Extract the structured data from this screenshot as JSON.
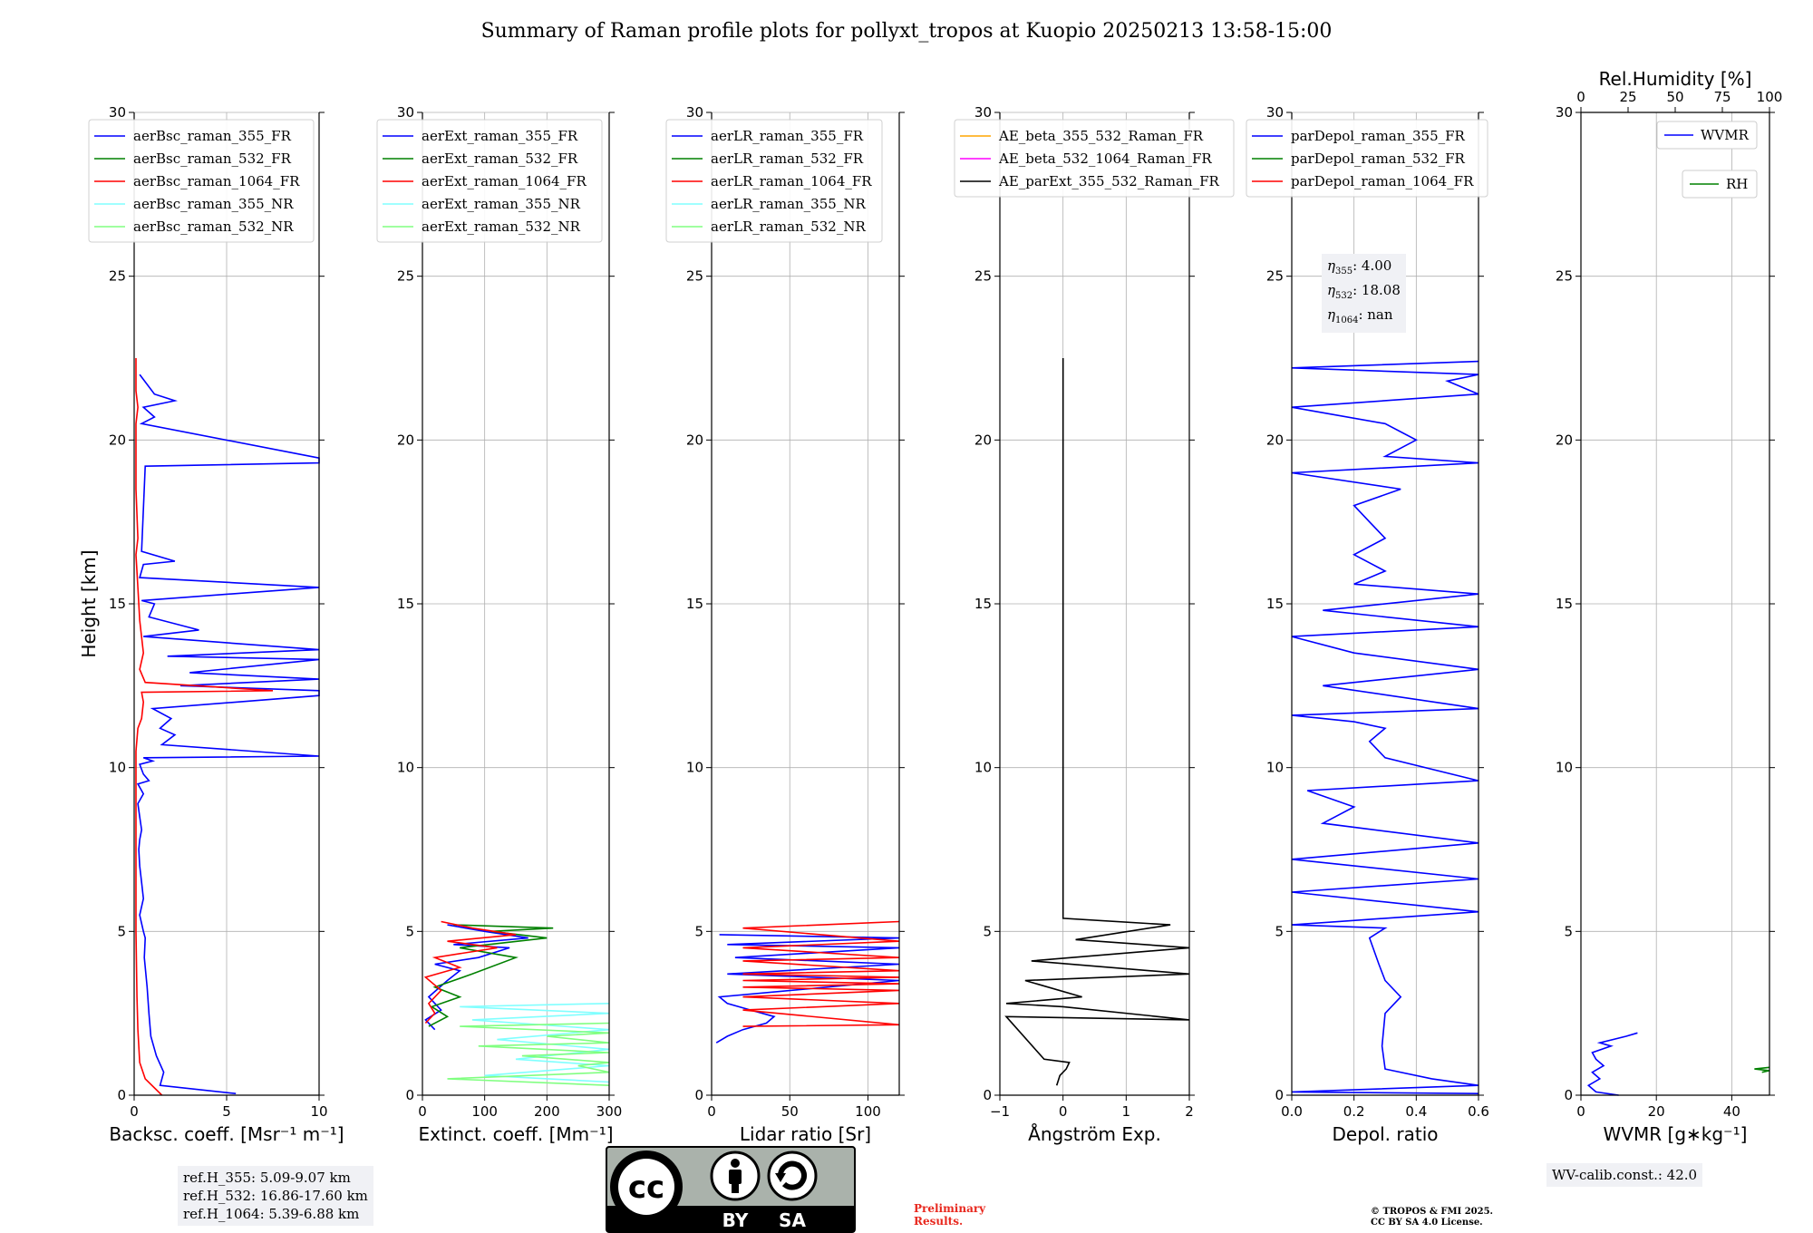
{
  "title": "Summary of Raman profile plots for pollyxt_tropos at Kuopio 20250213 13:58-15:00",
  "ylabel": "Height [km]",
  "ref_box": [
    "ref.H_355: 5.09-9.07 km",
    "ref.H_532: 16.86-17.60 km",
    "ref.H_1064: 5.39-6.88 km"
  ],
  "eta_box": [
    {
      "sym": "η",
      "sub": "355",
      "value": ": 4.00"
    },
    {
      "sym": "η",
      "sub": "532",
      "value": ": 18.08"
    },
    {
      "sym": "η",
      "sub": "1064",
      "value": ": nan"
    }
  ],
  "wv_calib": "WV-calib.const.: 42.0",
  "preliminary": [
    "Preliminary",
    "Results."
  ],
  "copyright": [
    "© TROPOS & FMI 2025.",
    "CC BY SA 4.0 License."
  ],
  "cc_logo": {
    "cc": "cc",
    "by": "BY",
    "sa": "SA"
  },
  "colors": {
    "blue": "#0000ff",
    "green": "#008000",
    "red": "#ff0000",
    "cyan": "#80ffff",
    "lightgreen": "#80ff80",
    "orange": "#ffa500",
    "magenta": "#ff00ff",
    "black": "#000000"
  },
  "chart_data": [
    {
      "type": "line",
      "xlabel": "Backsc. coeff. [Msr⁻¹ m⁻¹]",
      "xlim": [
        0,
        10
      ],
      "xticks": [
        0,
        5,
        10
      ],
      "ylim": [
        0,
        30
      ],
      "yticks": [
        0,
        5,
        10,
        15,
        20,
        25,
        30
      ],
      "legend": [
        "aerBsc_raman_355_FR",
        "aerBsc_raman_532_FR",
        "aerBsc_raman_1064_FR",
        "aerBsc_raman_355_NR",
        "aerBsc_raman_532_NR"
      ],
      "legend_colors": [
        "blue",
        "green",
        "red",
        "cyan",
        "lightgreen"
      ],
      "legend_position": "top-left",
      "series": [
        {
          "name": "aerBsc_raman_355_FR",
          "color": "blue",
          "x": [
            5.5,
            1.4,
            1.6,
            1.2,
            0.9,
            0.8,
            0.7,
            0.55,
            0.6,
            0.5,
            0.3,
            0.5,
            0.4,
            0.3,
            0.25,
            0.3,
            0.4,
            0.3,
            0.2,
            0.5,
            0.2,
            0.8,
            0.5,
            0.3,
            1.0,
            0.5,
            10,
            1.5,
            2.2,
            1.4,
            2.0,
            1.0,
            10,
            10,
            2.5,
            10,
            3.0,
            10,
            1.8,
            10,
            0.5,
            3.5,
            0.8,
            1.1,
            0.4,
            10,
            0.3,
            0.5,
            2.2,
            0.4,
            0.6,
            10,
            10,
            0.4,
            1.1,
            0.5,
            2.2,
            1.1,
            0.3
          ],
          "y": [
            0.05,
            0.3,
            0.7,
            1.2,
            1.8,
            2.5,
            3.3,
            4.2,
            4.8,
            5.0,
            5.5,
            6.0,
            6.5,
            7.0,
            7.5,
            7.8,
            8.1,
            8.5,
            8.9,
            9.2,
            9.5,
            9.6,
            9.8,
            10.1,
            10.2,
            10.3,
            10.35,
            10.7,
            11.0,
            11.2,
            11.5,
            11.8,
            12.2,
            12.35,
            12.5,
            12.7,
            12.9,
            13.3,
            13.4,
            13.6,
            14.0,
            14.2,
            14.6,
            15.0,
            15.1,
            15.5,
            15.8,
            16.2,
            16.3,
            16.6,
            19.2,
            19.3,
            19.45,
            20.5,
            20.7,
            21.0,
            21.2,
            21.4,
            22.0
          ]
        },
        {
          "name": "aerBsc_raman_1064_FR",
          "color": "red",
          "x": [
            1.5,
            0.6,
            0.3,
            0.2,
            0.15,
            0.1,
            0.1,
            0.1,
            0.1,
            0.2,
            0.4,
            0.5,
            0.4,
            7.5,
            0.6,
            0.3,
            0.5,
            0.3,
            0.2,
            0.1,
            0.2,
            0.1,
            0.1,
            0.1,
            0.2,
            0.1,
            0.1
          ],
          "y": [
            0.0,
            0.5,
            1.0,
            2.0,
            3.0,
            5.0,
            7.0,
            9.0,
            10.5,
            11.2,
            11.5,
            12.0,
            12.3,
            12.35,
            12.6,
            13.0,
            13.5,
            14.5,
            15.5,
            16.5,
            17.0,
            18.5,
            19.5,
            20.5,
            21.0,
            21.5,
            22.5
          ]
        }
      ]
    },
    {
      "type": "line",
      "xlabel": "Extinct. coeff. [Mm⁻¹]",
      "xlim": [
        0,
        300
      ],
      "xticks": [
        0,
        100,
        200,
        300
      ],
      "ylim": [
        0,
        30
      ],
      "yticks": [
        0,
        5,
        10,
        15,
        20,
        25,
        30
      ],
      "legend": [
        "aerExt_raman_355_FR",
        "aerExt_raman_532_FR",
        "aerExt_raman_1064_FR",
        "aerExt_raman_355_NR",
        "aerExt_raman_532_NR"
      ],
      "legend_colors": [
        "blue",
        "green",
        "red",
        "cyan",
        "lightgreen"
      ],
      "legend_position": "top-left",
      "series": [
        {
          "name": "aerExt_raman_355_NR",
          "color": "cyan",
          "x": [
            300,
            100,
            300,
            150,
            300,
            120,
            300,
            80,
            300,
            60,
            300
          ],
          "y": [
            0.4,
            0.6,
            0.9,
            1.1,
            1.4,
            1.7,
            2.0,
            2.3,
            2.5,
            2.7,
            2.8
          ]
        },
        {
          "name": "aerExt_raman_532_NR",
          "color": "lightgreen",
          "x": [
            300,
            40,
            300,
            250,
            300,
            160,
            300,
            90,
            300,
            200,
            300,
            60,
            300
          ],
          "y": [
            0.3,
            0.5,
            0.7,
            0.9,
            1.0,
            1.2,
            1.3,
            1.5,
            1.6,
            1.8,
            1.9,
            2.1,
            2.2
          ]
        },
        {
          "name": "aerExt_raman_355_FR",
          "color": "blue",
          "x": [
            20,
            5,
            30,
            10,
            40,
            60,
            20,
            90,
            140,
            50,
            170,
            100,
            40
          ],
          "y": [
            2.0,
            2.3,
            2.6,
            3.0,
            3.5,
            3.8,
            4.0,
            4.2,
            4.5,
            4.6,
            4.8,
            5.0,
            5.2
          ]
        },
        {
          "name": "aerExt_raman_532_FR",
          "color": "green",
          "x": [
            10,
            40,
            15,
            60,
            20,
            80,
            150,
            60,
            200,
            110,
            210,
            50
          ],
          "y": [
            2.1,
            2.4,
            2.7,
            3.0,
            3.3,
            3.7,
            4.2,
            4.5,
            4.8,
            5.0,
            5.1,
            5.2
          ]
        },
        {
          "name": "aerExt_raman_1064_FR",
          "color": "red",
          "x": [
            5,
            20,
            10,
            30,
            5,
            60,
            20,
            120,
            40,
            150,
            80,
            30
          ],
          "y": [
            2.2,
            2.5,
            2.8,
            3.2,
            3.6,
            3.9,
            4.2,
            4.5,
            4.7,
            4.9,
            5.1,
            5.3
          ]
        }
      ]
    },
    {
      "type": "line",
      "xlabel": "Lidar ratio [Sr]",
      "xlim": [
        0,
        120
      ],
      "xticks": [
        0,
        50,
        100
      ],
      "ylim": [
        0,
        30
      ],
      "yticks": [
        0,
        5,
        10,
        15,
        20,
        25,
        30
      ],
      "legend": [
        "aerLR_raman_355_FR",
        "aerLR_raman_532_FR",
        "aerLR_raman_1064_FR",
        "aerLR_raman_355_NR",
        "aerLR_raman_532_NR"
      ],
      "legend_colors": [
        "blue",
        "green",
        "red",
        "cyan",
        "lightgreen"
      ],
      "legend_position": "top-left",
      "series": [
        {
          "name": "aerLR_raman_355_FR",
          "color": "blue",
          "x": [
            3,
            10,
            20,
            35,
            40,
            25,
            10,
            5,
            120,
            10,
            120,
            15,
            120,
            10,
            120,
            5
          ],
          "y": [
            1.6,
            1.8,
            2.0,
            2.2,
            2.4,
            2.6,
            2.8,
            3.0,
            3.5,
            3.7,
            4.0,
            4.2,
            4.5,
            4.6,
            4.8,
            4.9
          ]
        },
        {
          "name": "aerLR_raman_1064_FR",
          "color": "red",
          "x": [
            20,
            120,
            20,
            120,
            20,
            120,
            20,
            120,
            20,
            120,
            20,
            120,
            20,
            120,
            20,
            120,
            20,
            120
          ],
          "y": [
            2.1,
            2.15,
            2.6,
            2.8,
            3.0,
            3.2,
            3.3,
            3.4,
            3.5,
            3.6,
            3.7,
            3.8,
            4.1,
            4.2,
            4.5,
            4.7,
            5.1,
            5.3
          ]
        }
      ]
    },
    {
      "type": "line",
      "xlabel": "Ångström Exp.",
      "xlim": [
        -1,
        2
      ],
      "xticks": [
        -1,
        0,
        1,
        2
      ],
      "ylim": [
        0,
        30
      ],
      "yticks": [
        0,
        5,
        10,
        15,
        20,
        25,
        30
      ],
      "legend": [
        "AE_beta_355_532_Raman_FR",
        "AE_beta_532_1064_Raman_FR",
        "AE_parExt_355_532_Raman_FR"
      ],
      "legend_colors": [
        "orange",
        "magenta",
        "black"
      ],
      "legend_position": "top-left",
      "series": [
        {
          "name": "AE_parExt_355_532_Raman_FR",
          "color": "black",
          "x": [
            -0.1,
            -0.05,
            0.05,
            0.1,
            -0.3,
            -0.9,
            2.0,
            0.0,
            -0.9,
            0.3,
            -0.6,
            2.0,
            -0.5,
            2.0,
            0.2,
            1.7,
            0.0,
            0.0
          ],
          "y": [
            0.3,
            0.6,
            0.8,
            1.0,
            1.1,
            2.4,
            2.3,
            2.7,
            2.8,
            3.0,
            3.5,
            3.7,
            4.1,
            4.5,
            4.75,
            5.2,
            5.4,
            22.5
          ]
        }
      ]
    },
    {
      "type": "line",
      "xlabel": "Depol. ratio",
      "xlim": [
        0.0,
        0.6
      ],
      "xticks": [
        0.0,
        0.2,
        0.4,
        0.6
      ],
      "ylim": [
        0,
        30
      ],
      "yticks": [
        0,
        5,
        10,
        15,
        20,
        25,
        30
      ],
      "legend": [
        "parDepol_raman_355_FR",
        "parDepol_raman_532_FR",
        "parDepol_raman_1064_FR"
      ],
      "legend_colors": [
        "blue",
        "green",
        "red"
      ],
      "legend_position": "top-left",
      "series": [
        {
          "name": "parDepol_raman_355_FR",
          "color": "blue",
          "x": [
            0.6,
            0.0,
            0.6,
            0.45,
            0.3,
            0.29,
            0.3,
            0.35,
            0.3,
            0.28,
            0.25,
            0.3,
            0.0,
            0.6,
            0.0,
            0.6,
            0.0,
            0.6,
            0.1,
            0.2,
            0.05,
            0.6,
            0.3,
            0.25,
            0.3,
            0.2,
            0.0,
            0.6,
            0.1,
            0.6,
            0.2,
            0.0,
            0.6,
            0.1,
            0.6,
            0.2,
            0.3,
            0.2,
            0.3,
            0.25,
            0.2,
            0.35,
            0.0,
            0.6,
            0.3,
            0.4,
            0.3,
            0.0,
            0.6,
            0.5,
            0.6,
            0.0,
            0.6
          ],
          "y": [
            0.05,
            0.1,
            0.3,
            0.5,
            0.8,
            1.5,
            2.5,
            3.0,
            3.5,
            4.0,
            4.8,
            5.1,
            5.2,
            5.6,
            6.2,
            6.6,
            7.2,
            7.7,
            8.3,
            8.8,
            9.3,
            9.6,
            10.3,
            10.8,
            11.2,
            11.4,
            11.6,
            11.8,
            12.5,
            13.0,
            13.5,
            14.0,
            14.3,
            14.8,
            15.3,
            15.6,
            16.0,
            16.5,
            17.0,
            17.5,
            18.0,
            18.5,
            19.0,
            19.3,
            19.5,
            20.0,
            20.5,
            21.0,
            21.4,
            21.8,
            22.0,
            22.2,
            22.4
          ]
        }
      ]
    },
    {
      "type": "line",
      "xlabel": "WVMR [g∗kg⁻¹]",
      "xlim": [
        0,
        50
      ],
      "xticks": [
        0,
        20,
        40
      ],
      "top_xlabel": "Rel.Humidity [%]",
      "top_xlim": [
        0,
        100
      ],
      "top_xticks": [
        0,
        25,
        50,
        75,
        100
      ],
      "ylim": [
        0,
        30
      ],
      "yticks": [
        0,
        5,
        10,
        15,
        20,
        25,
        30
      ],
      "legend": [
        "WVMR",
        "RH"
      ],
      "legend_colors": [
        "blue",
        "green"
      ],
      "legend_position": "top-right",
      "series": [
        {
          "name": "WVMR",
          "color": "blue",
          "x": [
            10,
            4,
            2,
            5,
            3,
            6,
            4,
            3,
            8,
            5,
            12,
            15
          ],
          "y": [
            0.0,
            0.1,
            0.3,
            0.5,
            0.7,
            0.9,
            1.1,
            1.3,
            1.5,
            1.6,
            1.8,
            1.9
          ]
        },
        {
          "name": "RH",
          "color": "green",
          "x": [
            48,
            50,
            46,
            50
          ],
          "y": [
            0.7,
            0.75,
            0.8,
            0.85
          ]
        }
      ]
    }
  ]
}
